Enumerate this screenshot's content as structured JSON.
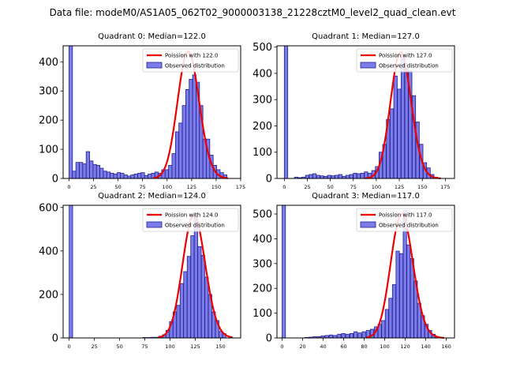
{
  "figure": {
    "suptitle": "Data file: modeM0/AS1A05_062T02_9000003138_21228cztM0_level2_quad_clean.evt",
    "colors": {
      "bar_fill": "#7b7bea",
      "bar_edge": "#1f1f8f",
      "curve": "#ee0000",
      "axis": "#000000"
    }
  },
  "chart_data": [
    {
      "type": "bar",
      "title": "Quadrant 0: Median=122.0",
      "legend": {
        "placement": "top-right",
        "entries": [
          "Poission with 122.0",
          "Observed distribution"
        ]
      },
      "xlim": [
        -6,
        175
      ],
      "ylim": [
        0,
        455
      ],
      "xticks": [
        0,
        25,
        50,
        75,
        100,
        125,
        150,
        175
      ],
      "yticks": [
        0,
        100,
        200,
        300,
        400
      ],
      "bin_width": 3.5,
      "bins": [
        {
          "x": 0,
          "y": 455
        },
        {
          "x": 3.5,
          "y": 25
        },
        {
          "x": 7,
          "y": 55
        },
        {
          "x": 10.5,
          "y": 55
        },
        {
          "x": 14,
          "y": 50
        },
        {
          "x": 17.5,
          "y": 92
        },
        {
          "x": 21,
          "y": 60
        },
        {
          "x": 24.5,
          "y": 48
        },
        {
          "x": 28,
          "y": 45
        },
        {
          "x": 31.5,
          "y": 35
        },
        {
          "x": 35,
          "y": 25
        },
        {
          "x": 38.5,
          "y": 22
        },
        {
          "x": 42,
          "y": 18
        },
        {
          "x": 45.5,
          "y": 15
        },
        {
          "x": 49,
          "y": 20
        },
        {
          "x": 52.5,
          "y": 18
        },
        {
          "x": 56,
          "y": 12
        },
        {
          "x": 59.5,
          "y": 8
        },
        {
          "x": 63,
          "y": 12
        },
        {
          "x": 66.5,
          "y": 15
        },
        {
          "x": 70,
          "y": 18
        },
        {
          "x": 73.5,
          "y": 20
        },
        {
          "x": 77,
          "y": 10
        },
        {
          "x": 80.5,
          "y": 15
        },
        {
          "x": 84,
          "y": 18
        },
        {
          "x": 87.5,
          "y": 22
        },
        {
          "x": 91,
          "y": 18
        },
        {
          "x": 94.5,
          "y": 30
        },
        {
          "x": 98,
          "y": 30
        },
        {
          "x": 101.5,
          "y": 45
        },
        {
          "x": 105,
          "y": 85
        },
        {
          "x": 108.5,
          "y": 160
        },
        {
          "x": 112,
          "y": 190
        },
        {
          "x": 115.5,
          "y": 250
        },
        {
          "x": 119,
          "y": 305
        },
        {
          "x": 122.5,
          "y": 340
        },
        {
          "x": 126,
          "y": 355
        },
        {
          "x": 129.5,
          "y": 330
        },
        {
          "x": 133,
          "y": 250
        },
        {
          "x": 136.5,
          "y": 135
        },
        {
          "x": 140,
          "y": 135
        },
        {
          "x": 143.5,
          "y": 80
        },
        {
          "x": 147,
          "y": 45
        },
        {
          "x": 150.5,
          "y": 30
        },
        {
          "x": 154,
          "y": 20
        },
        {
          "x": 157.5,
          "y": 12
        }
      ],
      "poisson_mean": 122.0,
      "poisson_peak": 435,
      "curve_range": [
        86,
        162
      ]
    },
    {
      "type": "bar",
      "title": "Quadrant 1: Median=127.0",
      "legend": {
        "placement": "top-right",
        "entries": [
          "Poission with 127.0",
          "Observed distribution"
        ]
      },
      "xlim": [
        -8,
        185
      ],
      "ylim": [
        0,
        505
      ],
      "xticks": [
        0,
        25,
        50,
        75,
        100,
        125,
        150,
        175
      ],
      "yticks": [
        0,
        100,
        200,
        300,
        400,
        500
      ],
      "bin_width": 3.7,
      "bins": [
        {
          "x": 0,
          "y": 505
        },
        {
          "x": 11,
          "y": 5
        },
        {
          "x": 15,
          "y": 3
        },
        {
          "x": 19,
          "y": 5
        },
        {
          "x": 23,
          "y": 12
        },
        {
          "x": 27,
          "y": 15
        },
        {
          "x": 31,
          "y": 18
        },
        {
          "x": 35,
          "y": 12
        },
        {
          "x": 39,
          "y": 10
        },
        {
          "x": 43,
          "y": 8
        },
        {
          "x": 47,
          "y": 12
        },
        {
          "x": 51,
          "y": 10
        },
        {
          "x": 55,
          "y": 12
        },
        {
          "x": 59,
          "y": 15
        },
        {
          "x": 63,
          "y": 8
        },
        {
          "x": 67,
          "y": 12
        },
        {
          "x": 71,
          "y": 15
        },
        {
          "x": 75,
          "y": 20
        },
        {
          "x": 79,
          "y": 18
        },
        {
          "x": 83,
          "y": 20
        },
        {
          "x": 87,
          "y": 25
        },
        {
          "x": 91,
          "y": 20
        },
        {
          "x": 95,
          "y": 30
        },
        {
          "x": 99,
          "y": 45
        },
        {
          "x": 103,
          "y": 100
        },
        {
          "x": 107,
          "y": 130
        },
        {
          "x": 111,
          "y": 225
        },
        {
          "x": 115,
          "y": 265
        },
        {
          "x": 119,
          "y": 390
        },
        {
          "x": 123,
          "y": 340
        },
        {
          "x": 127,
          "y": 470
        },
        {
          "x": 131,
          "y": 420
        },
        {
          "x": 135,
          "y": 410
        },
        {
          "x": 139,
          "y": 315
        },
        {
          "x": 143,
          "y": 215
        },
        {
          "x": 147,
          "y": 130
        },
        {
          "x": 151,
          "y": 60
        },
        {
          "x": 155,
          "y": 40
        },
        {
          "x": 159,
          "y": 15
        },
        {
          "x": 163,
          "y": 5
        }
      ],
      "poisson_mean": 127.0,
      "poisson_peak": 480,
      "curve_range": [
        88,
        170
      ]
    },
    {
      "type": "bar",
      "title": "Quadrant 2: Median=124.0",
      "legend": {
        "placement": "top-right",
        "entries": [
          "Poission with 124.0",
          "Observed distribution"
        ]
      },
      "xlim": [
        -6,
        170
      ],
      "ylim": [
        0,
        610
      ],
      "xticks": [
        0,
        25,
        50,
        75,
        100,
        125,
        150
      ],
      "yticks": [
        0,
        200,
        400,
        600
      ],
      "bin_width": 3.4,
      "bins": [
        {
          "x": 0,
          "y": 610
        },
        {
          "x": 73,
          "y": 2
        },
        {
          "x": 77,
          "y": 2
        },
        {
          "x": 81,
          "y": 3
        },
        {
          "x": 85,
          "y": 3
        },
        {
          "x": 89,
          "y": 8
        },
        {
          "x": 92.5,
          "y": 15
        },
        {
          "x": 96,
          "y": 35
        },
        {
          "x": 99.5,
          "y": 75
        },
        {
          "x": 103,
          "y": 120
        },
        {
          "x": 106.5,
          "y": 150
        },
        {
          "x": 110,
          "y": 250
        },
        {
          "x": 113.5,
          "y": 305
        },
        {
          "x": 117,
          "y": 375
        },
        {
          "x": 120.5,
          "y": 470
        },
        {
          "x": 124,
          "y": 570
        },
        {
          "x": 127.5,
          "y": 420
        },
        {
          "x": 131,
          "y": 380
        },
        {
          "x": 134.5,
          "y": 280
        },
        {
          "x": 138,
          "y": 200
        },
        {
          "x": 141.5,
          "y": 120
        },
        {
          "x": 145,
          "y": 80
        },
        {
          "x": 148.5,
          "y": 30
        },
        {
          "x": 152,
          "y": 20
        }
      ],
      "poisson_mean": 124.0,
      "poisson_peak": 565,
      "curve_range": [
        88,
        162
      ]
    },
    {
      "type": "bar",
      "title": "Quadrant 3: Median=117.0",
      "legend": {
        "placement": "top-right",
        "entries": [
          "Poission with 117.0",
          "Observed distribution"
        ]
      },
      "xlim": [
        -5,
        168
      ],
      "ylim": [
        0,
        535
      ],
      "xticks": [
        0,
        20,
        40,
        60,
        80,
        100,
        120,
        140,
        160
      ],
      "yticks": [
        0,
        100,
        200,
        300,
        400,
        500
      ],
      "bin_width": 3.3,
      "bins": [
        {
          "x": 0,
          "y": 535
        },
        {
          "x": 22,
          "y": 2
        },
        {
          "x": 26,
          "y": 3
        },
        {
          "x": 30,
          "y": 5
        },
        {
          "x": 34,
          "y": 5
        },
        {
          "x": 38,
          "y": 8
        },
        {
          "x": 42,
          "y": 10
        },
        {
          "x": 46,
          "y": 12
        },
        {
          "x": 50,
          "y": 10
        },
        {
          "x": 54,
          "y": 15
        },
        {
          "x": 58,
          "y": 18
        },
        {
          "x": 62,
          "y": 15
        },
        {
          "x": 66,
          "y": 18
        },
        {
          "x": 70,
          "y": 25
        },
        {
          "x": 74,
          "y": 20
        },
        {
          "x": 78,
          "y": 25
        },
        {
          "x": 82,
          "y": 30
        },
        {
          "x": 86,
          "y": 35
        },
        {
          "x": 90,
          "y": 45
        },
        {
          "x": 93.5,
          "y": 55
        },
        {
          "x": 97,
          "y": 70
        },
        {
          "x": 100.5,
          "y": 115
        },
        {
          "x": 104,
          "y": 160
        },
        {
          "x": 107.5,
          "y": 215
        },
        {
          "x": 111,
          "y": 350
        },
        {
          "x": 114.5,
          "y": 340
        },
        {
          "x": 118,
          "y": 515
        },
        {
          "x": 121.5,
          "y": 375
        },
        {
          "x": 125,
          "y": 320
        },
        {
          "x": 128.5,
          "y": 230
        },
        {
          "x": 132,
          "y": 140
        },
        {
          "x": 135.5,
          "y": 90
        },
        {
          "x": 139,
          "y": 55
        },
        {
          "x": 142.5,
          "y": 30
        },
        {
          "x": 146,
          "y": 15
        },
        {
          "x": 149.5,
          "y": 5
        }
      ],
      "poisson_mean": 117.0,
      "poisson_peak": 500,
      "curve_range": [
        82,
        158
      ]
    }
  ]
}
